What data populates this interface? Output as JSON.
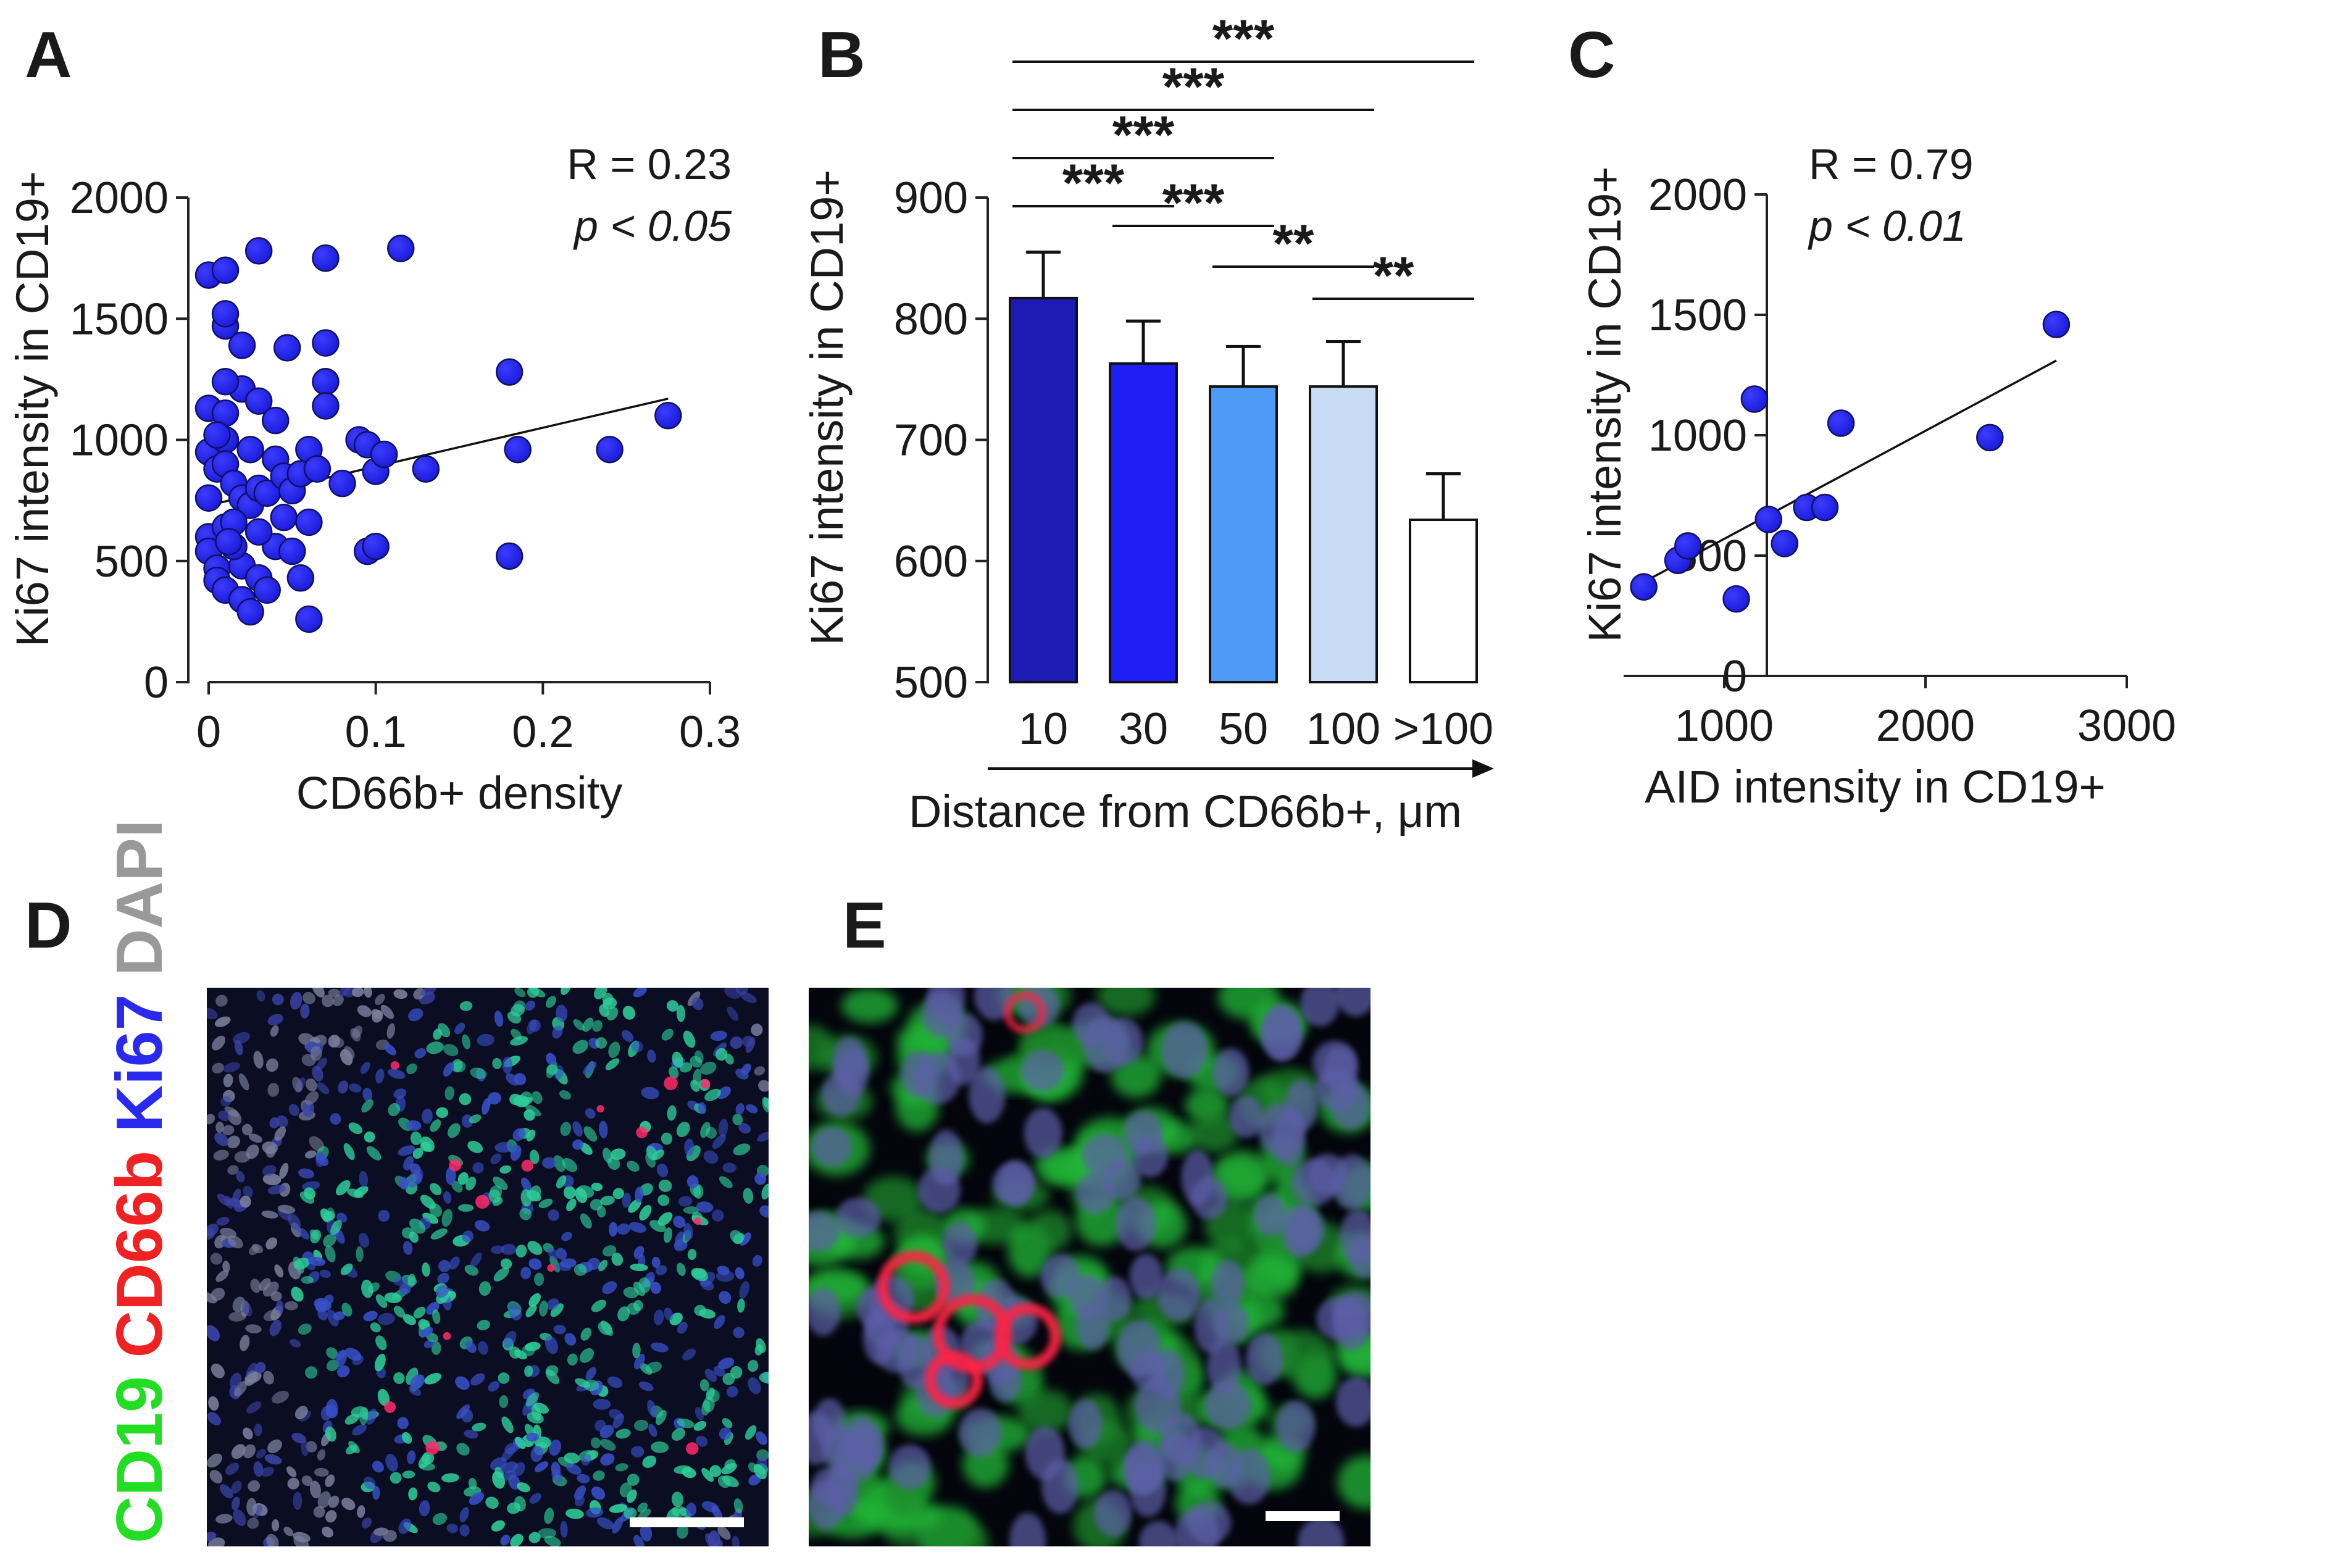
{
  "panels": {
    "A": "A",
    "B": "B",
    "C": "C",
    "D": "D",
    "E": "E"
  },
  "chart_data": [
    {
      "id": "A",
      "type": "scatter",
      "xlabel": "CD66b+ density",
      "ylabel": "Ki67 intensity in CD19+",
      "xlim": [
        0,
        0.3
      ],
      "ylim": [
        0,
        2000
      ],
      "xticks": [
        0,
        0.1,
        0.2,
        0.3
      ],
      "xtick_labels": [
        "0",
        "0.1",
        "0.2",
        "0.3"
      ],
      "yticks": [
        0,
        500,
        1000,
        1500,
        2000
      ],
      "ytick_labels": [
        "0",
        "500",
        "1000",
        "1500",
        "2000"
      ],
      "stat_r": "R = 0.23",
      "stat_p": "p < 0.05",
      "fit_line": {
        "x": [
          0,
          0.275
        ],
        "y": [
          730,
          1170
        ]
      },
      "color": "#2020ee",
      "points": [
        [
          0.0,
          1680
        ],
        [
          0.01,
          1700
        ],
        [
          0.01,
          1470
        ],
        [
          0.01,
          1520
        ],
        [
          0.02,
          1390
        ],
        [
          0.02,
          1210
        ],
        [
          0.0,
          1130
        ],
        [
          0.01,
          1110
        ],
        [
          0.03,
          1780
        ],
        [
          0.047,
          1380
        ],
        [
          0.07,
          1750
        ],
        [
          0.07,
          1400
        ],
        [
          0.07,
          1240
        ],
        [
          0.07,
          1140
        ],
        [
          0.115,
          1790
        ],
        [
          0.0,
          950
        ],
        [
          0.005,
          880
        ],
        [
          0.01,
          1000
        ],
        [
          0.01,
          900
        ],
        [
          0.015,
          820
        ],
        [
          0.02,
          760
        ],
        [
          0.025,
          730
        ],
        [
          0.03,
          800
        ],
        [
          0.035,
          780
        ],
        [
          0.04,
          920
        ],
        [
          0.045,
          850
        ],
        [
          0.03,
          1160
        ],
        [
          0.04,
          1080
        ],
        [
          0.05,
          790
        ],
        [
          0.055,
          860
        ],
        [
          0.06,
          960
        ],
        [
          0.065,
          880
        ],
        [
          0.0,
          600
        ],
        [
          0.0,
          540
        ],
        [
          0.005,
          470
        ],
        [
          0.005,
          420
        ],
        [
          0.01,
          380
        ],
        [
          0.01,
          640
        ],
        [
          0.015,
          660
        ],
        [
          0.02,
          480
        ],
        [
          0.02,
          340
        ],
        [
          0.025,
          290
        ],
        [
          0.03,
          430
        ],
        [
          0.035,
          380
        ],
        [
          0.04,
          560
        ],
        [
          0.045,
          680
        ],
        [
          0.05,
          540
        ],
        [
          0.055,
          430
        ],
        [
          0.06,
          260
        ],
        [
          0.06,
          660
        ],
        [
          0.08,
          820
        ],
        [
          0.09,
          1000
        ],
        [
          0.095,
          980
        ],
        [
          0.1,
          870
        ],
        [
          0.105,
          940
        ],
        [
          0.095,
          540
        ],
        [
          0.1,
          560
        ],
        [
          0.13,
          880
        ],
        [
          0.18,
          1280
        ],
        [
          0.185,
          960
        ],
        [
          0.18,
          520
        ],
        [
          0.24,
          960
        ],
        [
          0.275,
          1100
        ],
        [
          0.015,
          560
        ],
        [
          0.0,
          760
        ],
        [
          0.005,
          1020
        ],
        [
          0.01,
          1240
        ],
        [
          0.025,
          960
        ],
        [
          0.03,
          620
        ],
        [
          0.012,
          580
        ]
      ]
    },
    {
      "id": "B",
      "type": "bar",
      "categories": [
        "10",
        "30",
        "50",
        "100",
        ">100"
      ],
      "values": [
        817,
        763,
        744,
        744,
        634
      ],
      "errors": [
        38,
        35,
        33,
        37,
        38
      ],
      "bar_colors": [
        "#1c1cb4",
        "#1f1ff5",
        "#4d9bf5",
        "#c8dcf5",
        "#ffffff"
      ],
      "xlabel": "Distance from CD66b+, μm",
      "ylabel": "Ki67 intensity in CD19+",
      "ylim": [
        500,
        900
      ],
      "yticks": [
        500,
        600,
        700,
        800,
        900
      ],
      "ytick_labels": [
        "500",
        "600",
        "700",
        "800",
        "900"
      ],
      "significance": [
        {
          "from": 0,
          "to": 4,
          "label": "***"
        },
        {
          "from": 0,
          "to": 3,
          "label": "***"
        },
        {
          "from": 0,
          "to": 2,
          "label": "***"
        },
        {
          "from": 0,
          "to": 1,
          "label": "***"
        },
        {
          "from": 1,
          "to": 2,
          "label": "***"
        },
        {
          "from": 2,
          "to": 3,
          "label": "**"
        },
        {
          "from": 3,
          "to": 4,
          "label": "**"
        }
      ]
    },
    {
      "id": "C",
      "type": "scatter",
      "xlabel": "AID intensity in CD19+",
      "ylabel": "Ki67 intensity in CD19+",
      "xlim": [
        500,
        3000
      ],
      "ylim": [
        0,
        2000
      ],
      "xticks": [
        1000,
        2000,
        3000
      ],
      "xtick_labels": [
        "1000",
        "2000",
        "3000"
      ],
      "yticks": [
        0,
        500,
        1000,
        1500,
        2000
      ],
      "ytick_labels": [
        "0",
        "500",
        "1000",
        "1500",
        "2000"
      ],
      "stat_r": "R = 0.79",
      "stat_p": "p < 0.01",
      "fit_line": {
        "x": [
          600,
          2650
        ],
        "y": [
          390,
          1310
        ]
      },
      "color": "#2020ee",
      "points": [
        [
          600,
          370
        ],
        [
          770,
          480
        ],
        [
          820,
          540
        ],
        [
          1060,
          320
        ],
        [
          1150,
          1150
        ],
        [
          1220,
          650
        ],
        [
          1300,
          550
        ],
        [
          1410,
          700
        ],
        [
          1500,
          700
        ],
        [
          1580,
          1050
        ],
        [
          2320,
          990
        ],
        [
          2650,
          1460
        ]
      ]
    }
  ],
  "images": [
    {
      "id": "D",
      "description_stain_legend": [
        {
          "text": "CD19",
          "color": "#22dd22"
        },
        {
          "text": "CD66b",
          "color": "#ee2222"
        },
        {
          "text": "Ki67",
          "color": "#2a2aee"
        },
        {
          "text": "DAPI",
          "color": "#999999"
        }
      ]
    },
    {
      "id": "E"
    }
  ]
}
